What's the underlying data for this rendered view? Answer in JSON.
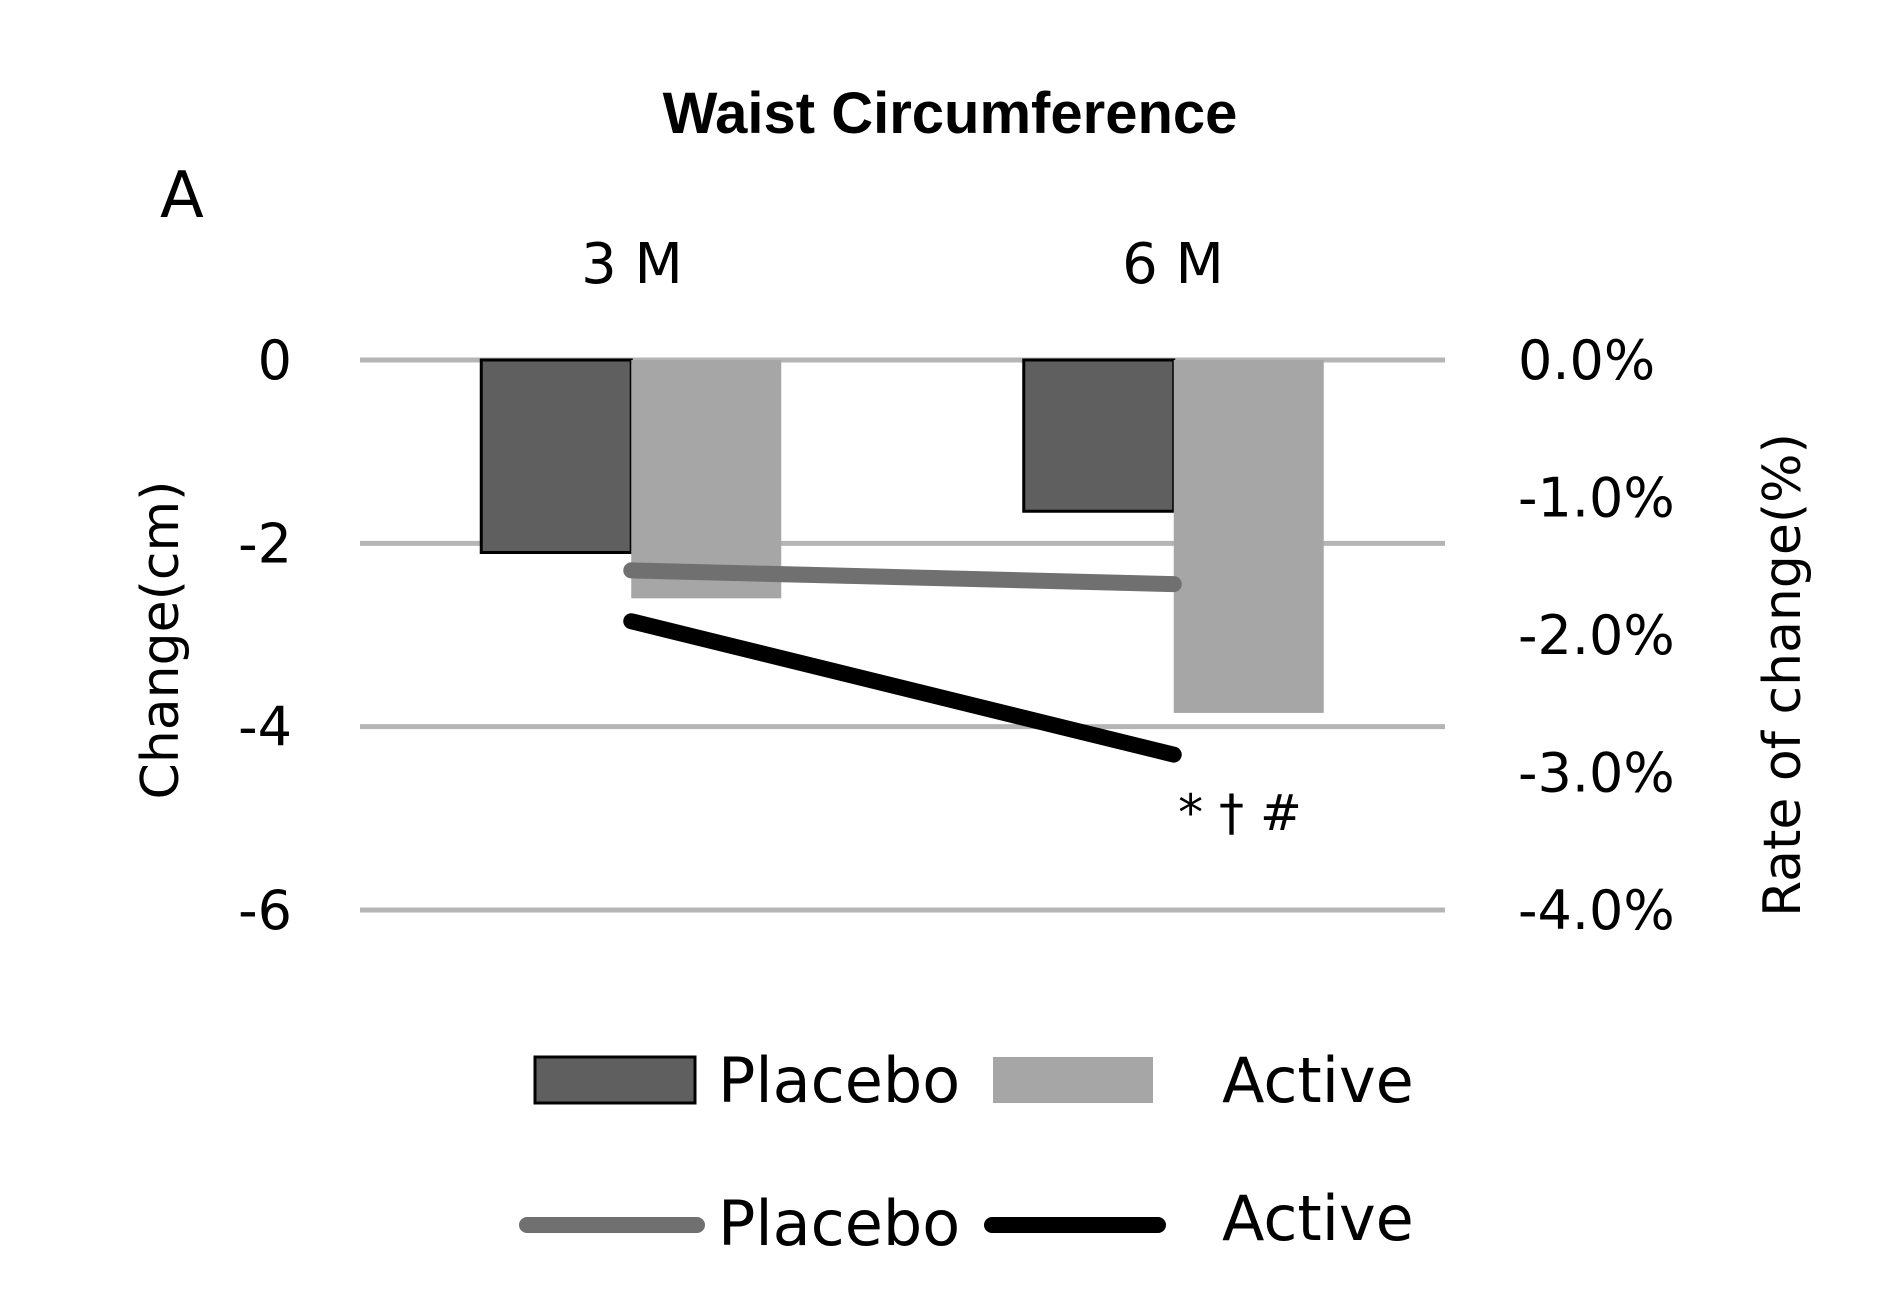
{
  "chart_data": {
    "type": "bar",
    "title": "Waist Circumference",
    "panel_label": "A",
    "categories": [
      "3 M",
      "6 M"
    ],
    "bar_series": [
      {
        "name": "Placebo",
        "values": [
          -2.1,
          -1.65
        ],
        "color": "#5f5f5f"
      },
      {
        "name": "Active",
        "values": [
          -2.6,
          -3.85
        ],
        "color": "#a6a6a6"
      }
    ],
    "line_series": [
      {
        "name": "Placebo",
        "values": [
          -1.53,
          -1.63
        ],
        "axis": "right",
        "color": "#707070"
      },
      {
        "name": "Active",
        "values": [
          -1.9,
          -2.87
        ],
        "axis": "right",
        "color": "#000000"
      }
    ],
    "ylabel": "Change(cm)",
    "ylim": [
      -6,
      0
    ],
    "yticks": [
      "0",
      "-2",
      "-4",
      "-6"
    ],
    "y2label": "Rate of change(%)",
    "y2lim": [
      -4.0,
      0.0
    ],
    "y2ticks": [
      "0.0%",
      "-1.0%",
      "-2.0%",
      "-3.0%",
      "-4.0%"
    ],
    "annotation": "* † #",
    "grid": true,
    "legend_position": "bottom"
  }
}
